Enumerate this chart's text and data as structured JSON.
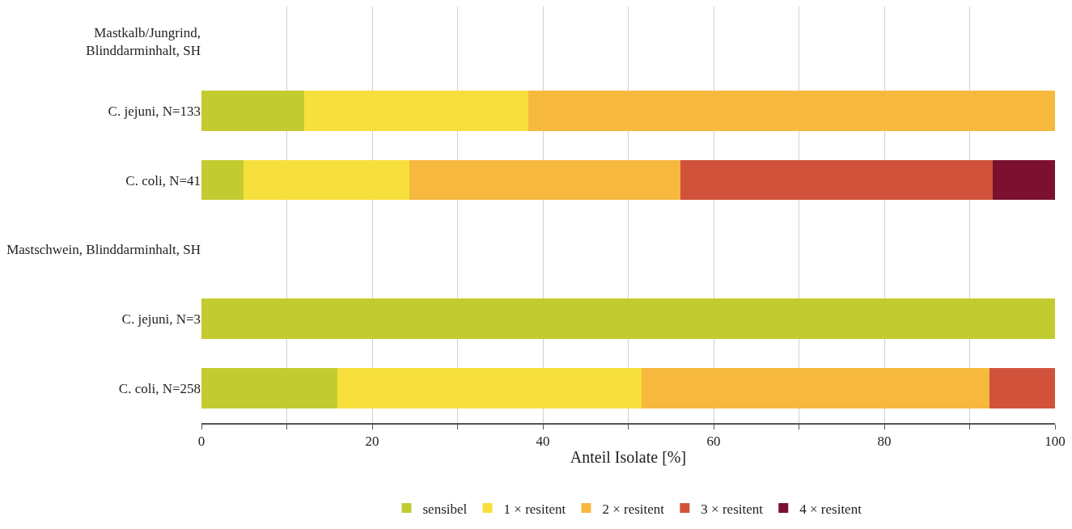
{
  "chart_data": {
    "type": "bar",
    "orientation": "horizontal",
    "stacked": true,
    "xlabel": "Anteil Isolate [%]",
    "categories": [
      "Mastkalb/Jungrind, Blinddarminhalt, SH",
      "C. jejuni, N=133",
      "C. coli, N=41",
      "Mastschwein, Blinddarminhalt, SH",
      "C. jejuni, N=3",
      "C. coli, N=258"
    ],
    "series": [
      {
        "name": "sensibel",
        "color": "#c2cc30",
        "values": [
          null,
          12.0,
          4.9,
          null,
          100,
          15.9
        ]
      },
      {
        "name": "1 × resitent",
        "color": "#f7e03b",
        "values": [
          null,
          26.3,
          19.5,
          null,
          null,
          35.7
        ]
      },
      {
        "name": "2 × resitent",
        "color": "#f6b93e",
        "values": [
          null,
          61.7,
          31.7,
          null,
          null,
          40.7
        ]
      },
      {
        "name": "3 × resitent",
        "color": "#d0523a",
        "values": [
          null,
          null,
          36.6,
          null,
          null,
          7.7
        ]
      },
      {
        "name": "4 × resitent",
        "color": "#7b1030",
        "values": [
          null,
          null,
          7.3,
          null,
          null,
          null
        ]
      }
    ],
    "xlim": [
      0,
      100
    ],
    "xticks": [
      0,
      {
        "value": 10,
        "label": null
      },
      20,
      {
        "value": 30,
        "label": null
      },
      40,
      {
        "value": 50,
        "label": null
      },
      60,
      {
        "value": 70,
        "label": null
      },
      80,
      {
        "value": 90,
        "label": null
      },
      100
    ],
    "grid": "x",
    "legend": "bottom"
  }
}
